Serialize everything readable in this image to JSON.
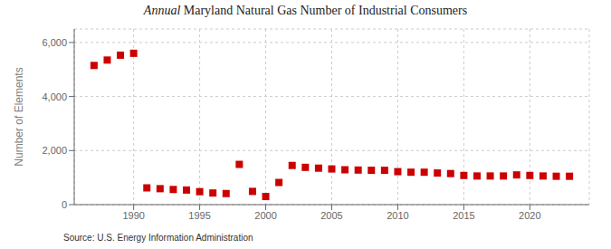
{
  "chart_data": {
    "type": "scatter",
    "title": "Annual Maryland Natural Gas Number of Industrial Consumers",
    "y_label": "Number of Elements",
    "annotations": [
      "Source: U.S. Energy Information Administration"
    ],
    "x": [
      1987,
      1988,
      1989,
      1990,
      1991,
      1992,
      1993,
      1994,
      1995,
      1996,
      1997,
      1998,
      1999,
      2000,
      2001,
      2002,
      2003,
      2004,
      2005,
      2006,
      2007,
      2008,
      2009,
      2010,
      2011,
      2012,
      2013,
      2014,
      2015,
      2016,
      2017,
      2018,
      2019,
      2020,
      2021,
      2022,
      2023
    ],
    "values": [
      5150,
      5350,
      5530,
      5600,
      620,
      590,
      560,
      540,
      480,
      430,
      410,
      1490,
      490,
      300,
      820,
      1450,
      1380,
      1350,
      1320,
      1290,
      1280,
      1270,
      1270,
      1220,
      1200,
      1200,
      1170,
      1150,
      1080,
      1060,
      1060,
      1060,
      1100,
      1080,
      1060,
      1050,
      1050
    ],
    "color": "#cc0000",
    "marker": "square",
    "xlim": [
      1985.5,
      2024.5
    ],
    "xticks": [
      1990,
      1995,
      2000,
      2005,
      2010,
      2015,
      2020
    ],
    "ylim": [
      0,
      6500
    ],
    "yticks": [
      0,
      {
        "value": 2000,
        "label": "2,000"
      },
      {
        "value": 4000,
        "label": "4,000"
      },
      {
        "value": 6000,
        "label": "6,000"
      }
    ],
    "grid": true
  }
}
